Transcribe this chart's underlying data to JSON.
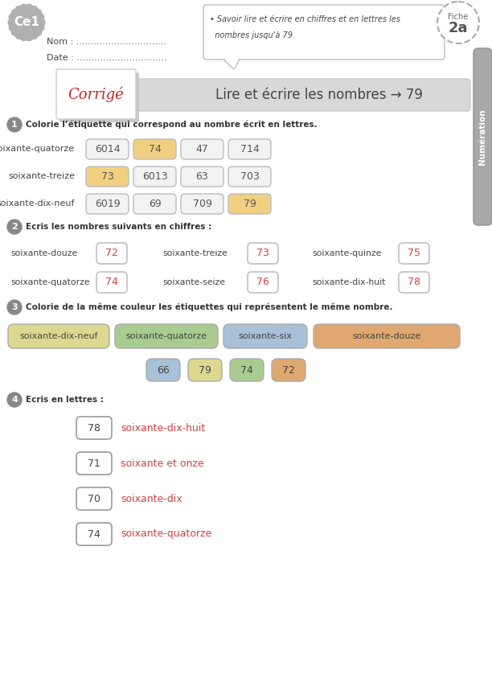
{
  "bg_color": "#ffffff",
  "header": {
    "ce1_text": "Ce1",
    "ce1_bg": "#b0b0b0",
    "nom_text": "Nom : ...............................",
    "date_text": "Date : ...............................",
    "objective_line1": "• Savoir lire et écrire en chiffres et en lettres les",
    "objective_line2": "  nombres jusqu'à 79.",
    "side_text": "Numération",
    "side_bg": "#a8a8a8"
  },
  "corrected_banner": {
    "corrige_text": "Corrigé",
    "title_text": "Lire et écrire les nombres → 79",
    "banner_bg": "#d8d8d8"
  },
  "section1": {
    "number": "1",
    "instruction": "Colorie l’étiquette qui correspond au nombre écrit en lettres.",
    "rows": [
      {
        "label": "soixante-quatorze",
        "items": [
          {
            "text": "6014",
            "highlighted": false
          },
          {
            "text": "74",
            "highlighted": true
          },
          {
            "text": "47",
            "highlighted": false
          },
          {
            "text": "714",
            "highlighted": false
          }
        ]
      },
      {
        "label": "soixante-treize",
        "items": [
          {
            "text": "73",
            "highlighted": true
          },
          {
            "text": "6013",
            "highlighted": false
          },
          {
            "text": "63",
            "highlighted": false
          },
          {
            "text": "703",
            "highlighted": false
          }
        ]
      },
      {
        "label": "soixante-dix-neuf",
        "items": [
          {
            "text": "6019",
            "highlighted": false
          },
          {
            "text": "69",
            "highlighted": false
          },
          {
            "text": "709",
            "highlighted": false
          },
          {
            "text": "79",
            "highlighted": true
          }
        ]
      }
    ],
    "highlight_color": "#f0d080",
    "box_color": "#eeeeee",
    "text_color": "#555555"
  },
  "section2": {
    "number": "2",
    "instruction": "Ecris les nombres suivants en chiffres :",
    "rows": [
      [
        {
          "label": "soixante-douze",
          "value": "72"
        },
        {
          "label": "soixante-treize",
          "value": "73"
        },
        {
          "label": "soixante-quinze",
          "value": "75"
        }
      ],
      [
        {
          "label": "soixante-quatorze",
          "value": "74"
        },
        {
          "label": "soixante-seize",
          "value": "76"
        },
        {
          "label": "soixante-dix-huit",
          "value": "78"
        }
      ]
    ],
    "box_border": "#c0c0c0",
    "answer_color": "#d04040"
  },
  "section3": {
    "number": "3",
    "instruction": "Colorie de la même couleur les étiquettes qui représentent le même nombre.",
    "top_labels": [
      {
        "text": "soixante-dix-neuf",
        "color": "#ddd890"
      },
      {
        "text": "soixante-quatorze",
        "color": "#a8cc90"
      },
      {
        "text": "soixante-six",
        "color": "#a8c0d8"
      },
      {
        "text": "soixante-douze",
        "color": "#e0a870"
      }
    ],
    "bottom_numbers": [
      {
        "text": "66",
        "color": "#a8c0d8"
      },
      {
        "text": "79",
        "color": "#ddd890"
      },
      {
        "text": "74",
        "color": "#a8cc90"
      },
      {
        "text": "72",
        "color": "#e0a870"
      }
    ]
  },
  "section4": {
    "number": "4",
    "instruction": "Ecris en lettres :",
    "items": [
      {
        "number": "78",
        "text": "soixante-dix-huit"
      },
      {
        "number": "71",
        "text": "soixante et onze"
      },
      {
        "number": "70",
        "text": "soixante-dix"
      },
      {
        "number": "74",
        "text": "soixante-quatorze"
      }
    ],
    "answer_color": "#d04040",
    "box_border": "#999999"
  }
}
